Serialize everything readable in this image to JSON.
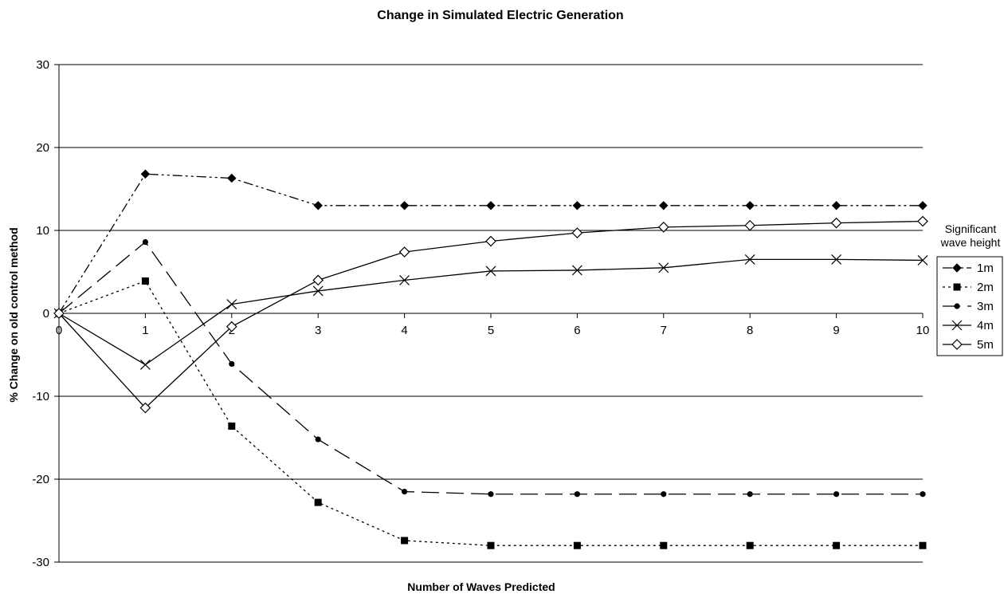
{
  "chart_data": {
    "type": "line",
    "title": "Change in Simulated Electric Generation",
    "xlabel": "Number of Waves Predicted",
    "ylabel": "% Change on old control method",
    "x": [
      0,
      1,
      2,
      3,
      4,
      5,
      6,
      7,
      8,
      9,
      10
    ],
    "xlim": [
      0,
      10
    ],
    "ylim": [
      -30,
      30
    ],
    "yticks": [
      -30,
      -20,
      -10,
      0,
      10,
      20,
      30
    ],
    "grid": "horizontal",
    "legend": {
      "title_lines": [
        "Significant",
        "wave height"
      ],
      "placement": "right"
    },
    "series": [
      {
        "name": "1m",
        "values": [
          0,
          16.8,
          16.3,
          13.0,
          13.0,
          13.0,
          13.0,
          13.0,
          13.0,
          13.0,
          13.0
        ],
        "color": "#000000",
        "marker": "diamond-filled",
        "dash": "12,4,3,4,3,4"
      },
      {
        "name": "2m",
        "values": [
          0,
          3.9,
          -13.6,
          -22.8,
          -27.4,
          -28.0,
          -28.0,
          -28.0,
          -28.0,
          -28.0,
          -28.0
        ],
        "color": "#000000",
        "marker": "square-filled",
        "dash": "3,4"
      },
      {
        "name": "3m",
        "values": [
          0,
          8.6,
          -6.1,
          -15.2,
          -21.5,
          -21.8,
          -21.8,
          -21.8,
          -21.8,
          -21.8,
          -21.8
        ],
        "color": "#000000",
        "marker": "circle-filled",
        "dash": "22,9"
      },
      {
        "name": "4m",
        "values": [
          0,
          -6.2,
          1.1,
          2.7,
          4.0,
          5.1,
          5.2,
          5.5,
          6.5,
          6.5,
          6.4
        ],
        "color": "#000000",
        "marker": "x",
        "dash": ""
      },
      {
        "name": "5m",
        "values": [
          0,
          -11.4,
          -1.6,
          4.0,
          7.4,
          8.7,
          9.7,
          10.4,
          10.6,
          10.9,
          11.1
        ],
        "color": "#000000",
        "marker": "diamond-open",
        "dash": ""
      }
    ]
  }
}
